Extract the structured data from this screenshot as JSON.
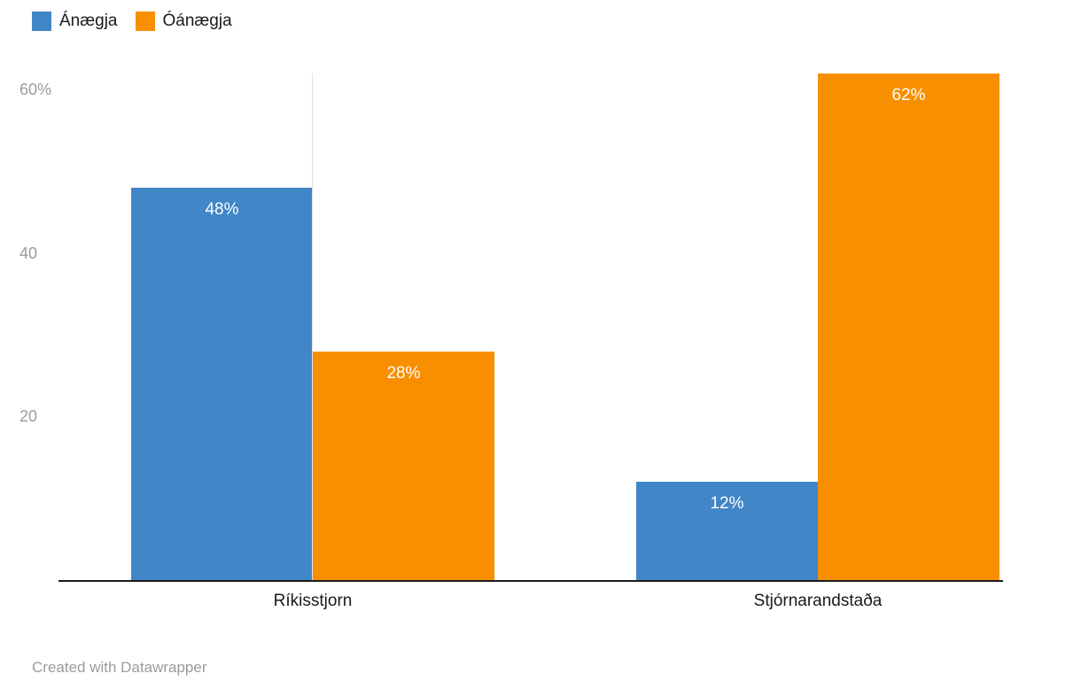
{
  "chart_data": {
    "type": "bar",
    "title": "",
    "categories": [
      "Ríkisstjorn",
      "Stjórnarandstaða"
    ],
    "series": [
      {
        "name": "Ánægja",
        "color": "#4186c6",
        "values": [
          48,
          12
        ]
      },
      {
        "name": "Óánægja",
        "color": "#f78f00",
        "values": [
          28,
          62
        ]
      }
    ],
    "value_labels": [
      [
        "48%",
        "12%"
      ],
      [
        "28%",
        "62%"
      ]
    ],
    "value_suffix": "%",
    "y_ticks": [
      20,
      40,
      60
    ],
    "y_tick_labels": [
      "20",
      "40",
      "60%"
    ],
    "ylim": [
      0,
      62
    ],
    "grid": "off",
    "legend_position": "top-left"
  },
  "legend": {
    "items": [
      {
        "label": "Ánægja",
        "color": "#4186c6"
      },
      {
        "label": "Óánægja",
        "color": "#f78f00"
      }
    ]
  },
  "footer": {
    "credit": "Created with Datawrapper"
  }
}
